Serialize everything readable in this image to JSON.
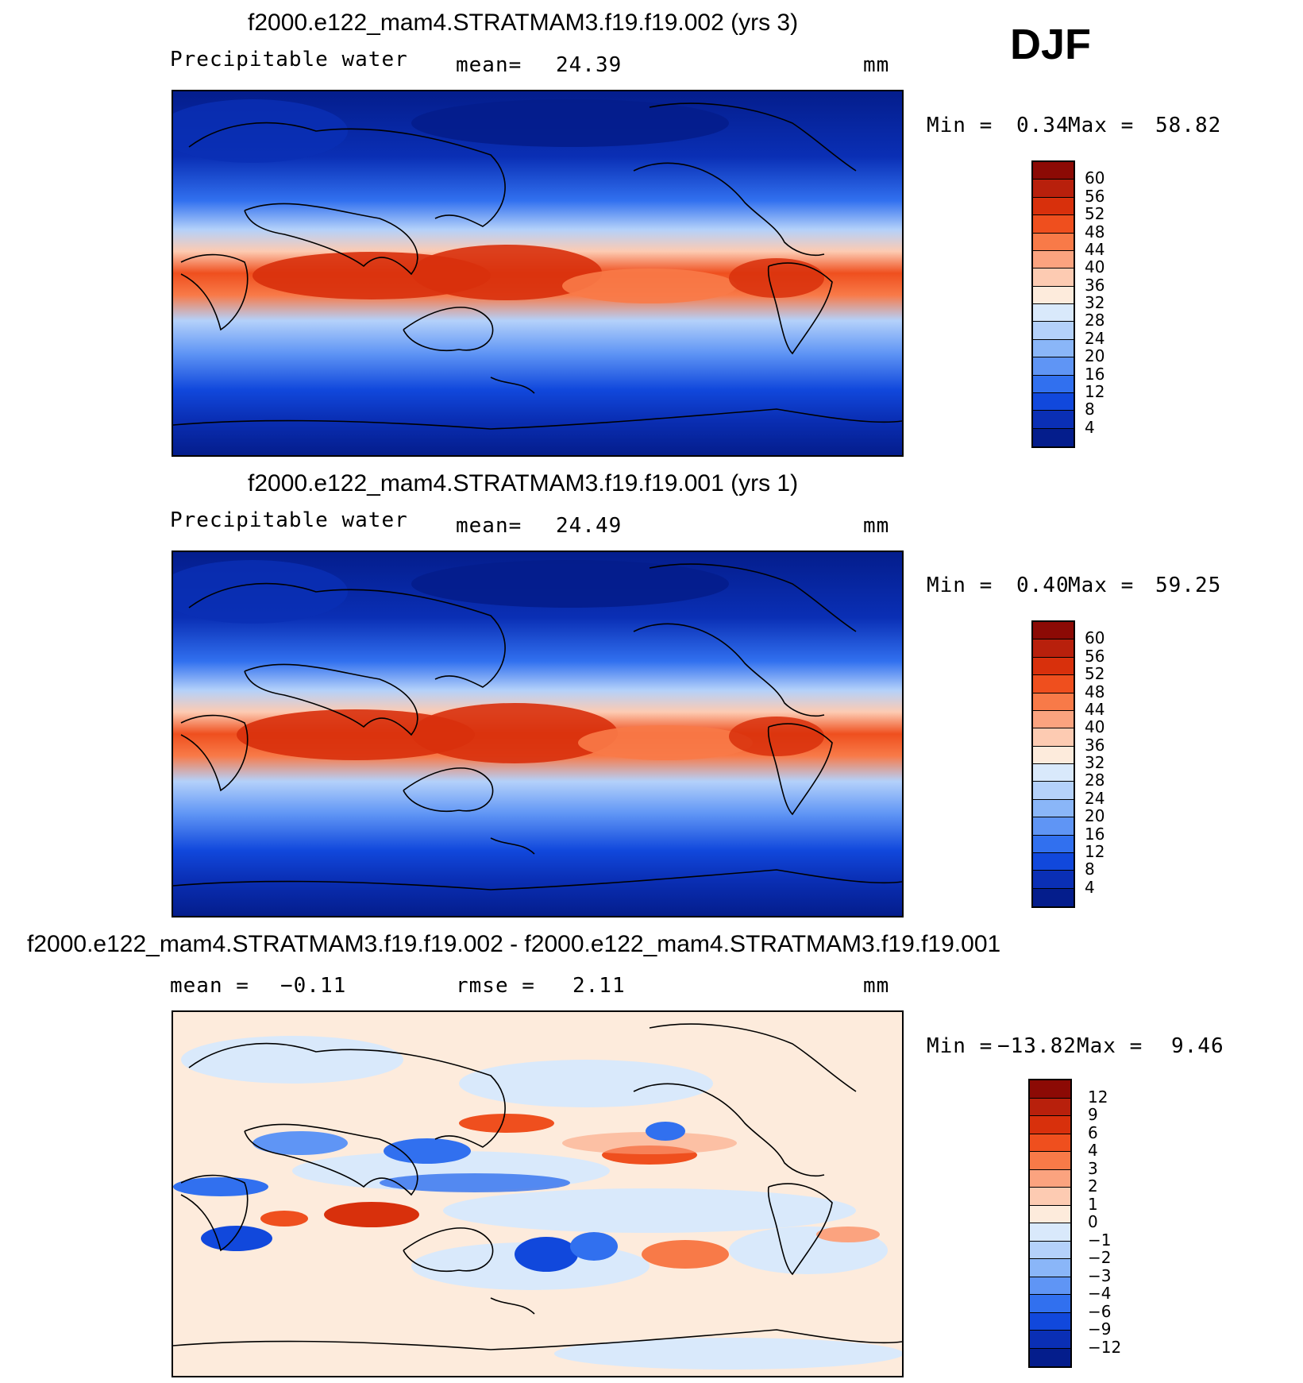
{
  "season": "DJF",
  "panels": [
    {
      "title": "f2000.e122_mam4.STRATMAM3.f19.f19.002 (yrs 3)",
      "variable": "Precipitable water",
      "mean_label": "mean=",
      "mean_value": "24.39",
      "units": "mm",
      "minmax": {
        "min_label": "Min =",
        "min": "0.34",
        "max_label": "Max =",
        "max": "58.82"
      }
    },
    {
      "title": "f2000.e122_mam4.STRATMAM3.f19.f19.001 (yrs 1)",
      "variable": "Precipitable water",
      "mean_label": "mean=",
      "mean_value": "24.49",
      "units": "mm",
      "minmax": {
        "min_label": "Min =",
        "min": "0.40",
        "max_label": "Max =",
        "max": "59.25"
      }
    },
    {
      "title": "f2000.e122_mam4.STRATMAM3.f19.f19.002 - f2000.e122_mam4.STRATMAM3.f19.f19.001",
      "mean_label": "mean =",
      "mean_value": "−0.11",
      "rmse_label": "rmse =",
      "rmse_value": "2.11",
      "units": "mm",
      "minmax": {
        "min_label": "Min =",
        "min": "−13.82",
        "max_label": "Max =",
        "max": "9.46"
      }
    }
  ],
  "colorbars": {
    "absolute": {
      "ticks": [
        "60",
        "56",
        "52",
        "48",
        "44",
        "40",
        "36",
        "32",
        "28",
        "24",
        "20",
        "16",
        "12",
        "8",
        "4"
      ],
      "colors": [
        "#8c0a05",
        "#b8200c",
        "#d8300c",
        "#ef4f1e",
        "#f87a48",
        "#fba37f",
        "#fdcbb2",
        "#fdebdc",
        "#d9e9fb",
        "#b4d1fa",
        "#8ab6f8",
        "#5f95f5",
        "#3170ef",
        "#1148dc",
        "#0a2fb5",
        "#041d8c"
      ]
    },
    "difference": {
      "ticks": [
        "12",
        "9",
        "6",
        "4",
        "3",
        "2",
        "1",
        "0",
        "−1",
        "−2",
        "−3",
        "−4",
        "−6",
        "−9",
        "−12"
      ],
      "colors": [
        "#8c0a05",
        "#b8200c",
        "#d8300c",
        "#ef4f1e",
        "#f87a48",
        "#fba37f",
        "#fdcbb2",
        "#fdebdc",
        "#d9e9fb",
        "#b4d1fa",
        "#8ab6f8",
        "#5f95f5",
        "#3170ef",
        "#1148dc",
        "#0a2fb5",
        "#041d8c"
      ]
    }
  }
}
